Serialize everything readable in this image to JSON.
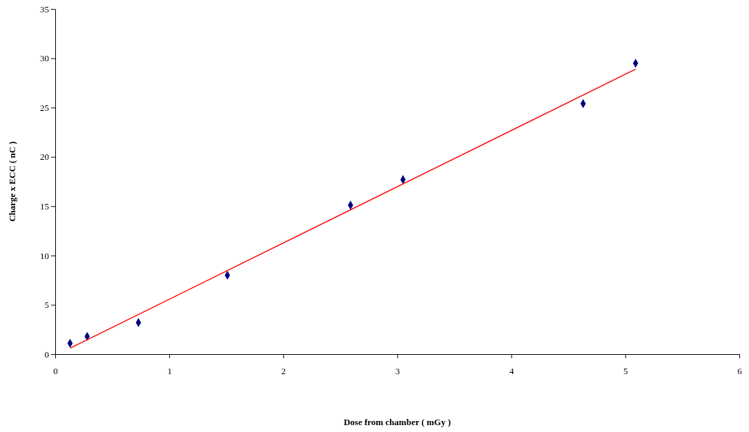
{
  "chart_data": {
    "type": "scatter",
    "xlabel": "Dose  from  chamber  ( mGy )",
    "ylabel": "Charge x  ECC  ( nC )",
    "xlim": [
      0,
      6
    ],
    "xticks": [
      0,
      1,
      2,
      3,
      4,
      5,
      6
    ],
    "ylim": [
      0,
      35
    ],
    "yticks": [
      0,
      5,
      10,
      15,
      20,
      25,
      30,
      35
    ],
    "grid": false,
    "series": [
      {
        "color": "#000080",
        "marker": "diamond",
        "x": [
          0.13,
          0.28,
          0.73,
          1.51,
          2.59,
          3.05,
          4.63,
          5.09
        ],
        "values": [
          1.1,
          1.8,
          3.2,
          8.0,
          15.1,
          17.7,
          25.4,
          29.5
        ]
      },
      {
        "type": "line",
        "color": "#ff0000",
        "marker": "none",
        "line_style": "solid",
        "x": [
          0.13,
          5.09
        ],
        "values": [
          0.6,
          28.9
        ]
      }
    ]
  }
}
